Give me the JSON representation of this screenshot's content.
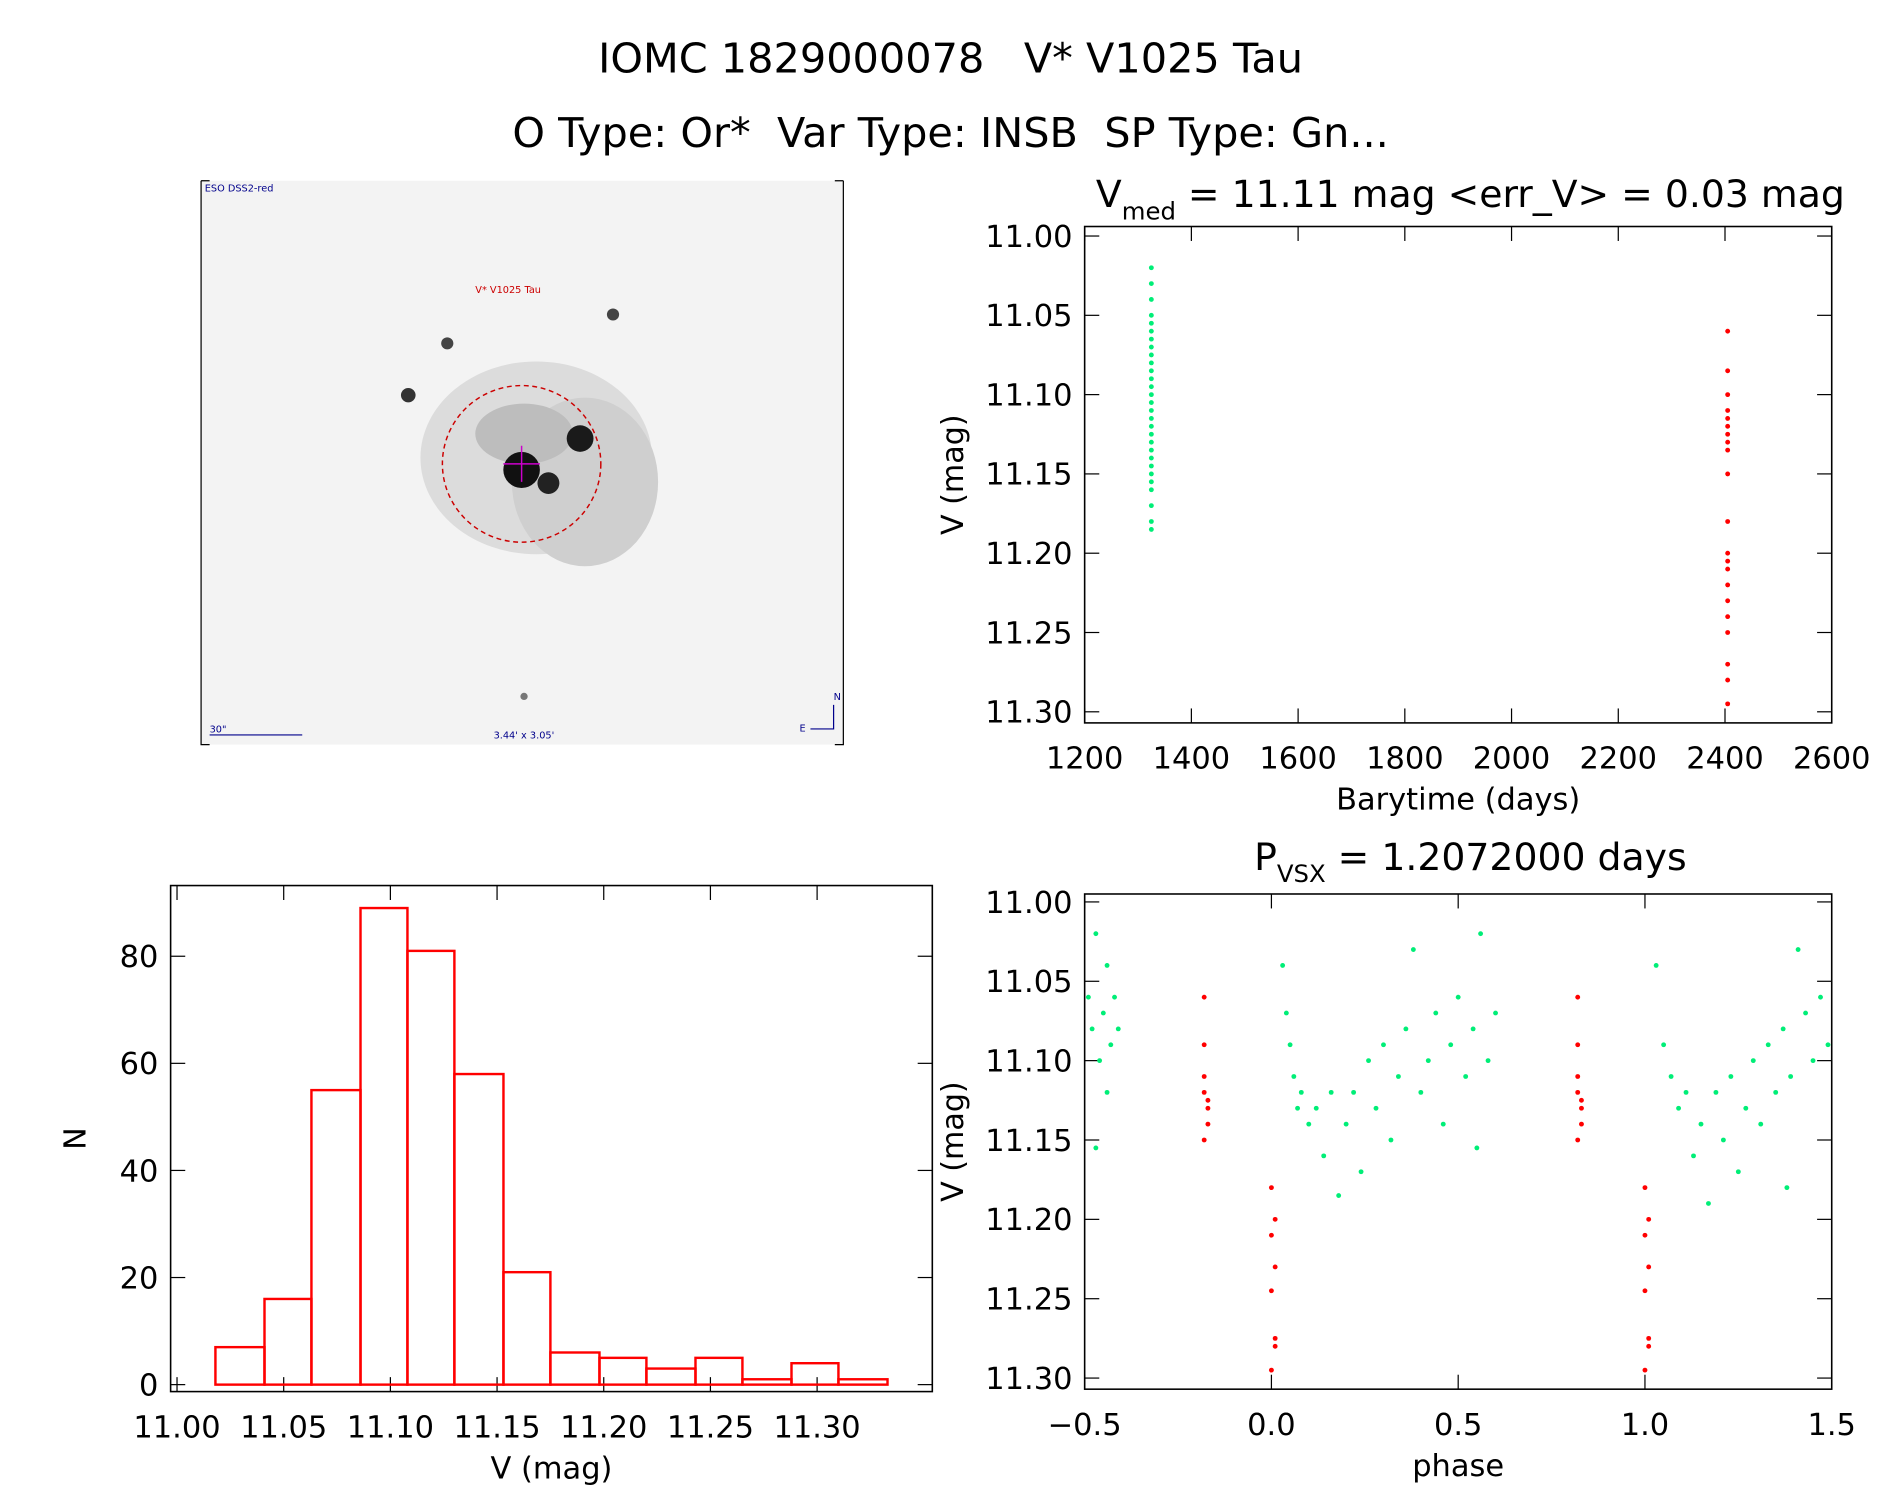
{
  "header": {
    "title": "IOMC 1829000078   V* V1025 Tau",
    "subtitle": "O Type: Or*  Var Type: INSB  SP Type: Gn..."
  },
  "image": {
    "survey": "ESO DSS2-red",
    "target": "V* V1025 Tau",
    "scale": "30\"",
    "size": "3.44' x 3.05'",
    "north": "N",
    "east": "E"
  },
  "chart_data": [
    {
      "type": "scatter",
      "title": {
        "symbol": "V",
        "subscript": "med",
        "text": " = 11.11 mag <err_V> = 0.03 mag"
      },
      "x_label": "Barytime (days)",
      "y_label": "V (mag)",
      "xlim": [
        1200,
        2600
      ],
      "xticks": [
        1200,
        1400,
        1600,
        1800,
        2000,
        2200,
        2400,
        2600
      ],
      "ylim": [
        11.307,
        10.994
      ],
      "yticks": [
        {
          "value": 11.0,
          "label": "11.00"
        },
        {
          "value": 11.05,
          "label": "11.05"
        },
        {
          "value": 11.1,
          "label": "11.10"
        },
        {
          "value": 11.15,
          "label": "11.15"
        },
        {
          "value": 11.2,
          "label": "11.20"
        },
        {
          "value": 11.25,
          "label": "11.25"
        },
        {
          "value": 11.3,
          "label": "11.30"
        }
      ],
      "series": [
        {
          "color": "#00ee77",
          "x": [
            1325,
            1325,
            1325,
            1325,
            1325,
            1325,
            1325,
            1325,
            1325,
            1325,
            1325,
            1325,
            1325,
            1325,
            1325,
            1325,
            1325,
            1325,
            1325,
            1325,
            1325,
            1325,
            1325,
            1325,
            1325,
            1325,
            1325,
            1325,
            1325
          ],
          "values": [
            11.02,
            11.03,
            11.04,
            11.05,
            11.055,
            11.06,
            11.065,
            11.07,
            11.075,
            11.08,
            11.085,
            11.09,
            11.095,
            11.1,
            11.105,
            11.11,
            11.115,
            11.12,
            11.125,
            11.13,
            11.135,
            11.14,
            11.145,
            11.15,
            11.155,
            11.16,
            11.17,
            11.18,
            11.185
          ]
        },
        {
          "color": "#ff0000",
          "x": [
            2405,
            2405,
            2405,
            2405,
            2405,
            2405,
            2405,
            2405,
            2405,
            2405,
            2405,
            2405,
            2405,
            2405,
            2405,
            2405,
            2405,
            2405,
            2405,
            2405,
            2405
          ],
          "values": [
            11.06,
            11.085,
            11.1,
            11.11,
            11.115,
            11.12,
            11.125,
            11.13,
            11.135,
            11.15,
            11.18,
            11.2,
            11.205,
            11.21,
            11.22,
            11.23,
            11.24,
            11.25,
            11.27,
            11.28,
            11.295
          ]
        }
      ]
    },
    {
      "type": "histogram",
      "x_label": "V (mag)",
      "y_label": "N",
      "color": "#ff0000",
      "bins": [
        11.018,
        11.041,
        11.063,
        11.086,
        11.108,
        11.13,
        11.153,
        11.175,
        11.198,
        11.22,
        11.243,
        11.265,
        11.288,
        11.31,
        11.333
      ],
      "values": [
        7,
        16,
        55,
        89,
        81,
        58,
        21,
        6,
        5,
        3,
        5,
        1,
        4,
        1
      ],
      "xlim": [
        10.997,
        11.354
      ],
      "xticks": [
        {
          "value": 11.0,
          "label": "11.00"
        },
        {
          "value": 11.05,
          "label": "11.05"
        },
        {
          "value": 11.1,
          "label": "11.10"
        },
        {
          "value": 11.15,
          "label": "11.15"
        },
        {
          "value": 11.2,
          "label": "11.20"
        },
        {
          "value": 11.25,
          "label": "11.25"
        },
        {
          "value": 11.3,
          "label": "11.30"
        }
      ],
      "ylim": [
        -1.3,
        93.2
      ],
      "yticks": [
        0,
        20,
        40,
        60,
        80
      ]
    },
    {
      "type": "scatter",
      "title": {
        "symbol": "P",
        "subscript": "VSX",
        "text": " = 1.2072000 days"
      },
      "x_label": "phase",
      "y_label": "V (mag)",
      "xlim": [
        -0.5,
        1.5
      ],
      "xticks": [
        {
          "value": -0.5,
          "label": "−0.5"
        },
        {
          "value": 0,
          "label": "0.0"
        },
        {
          "value": 0.5,
          "label": "0.5"
        },
        {
          "value": 1,
          "label": "1.0"
        },
        {
          "value": 1.5,
          "label": "1.5"
        }
      ],
      "ylim": [
        11.307,
        10.995
      ],
      "yticks": [
        {
          "value": 11.0,
          "label": "11.00"
        },
        {
          "value": 11.05,
          "label": "11.05"
        },
        {
          "value": 11.1,
          "label": "11.10"
        },
        {
          "value": 11.15,
          "label": "11.15"
        },
        {
          "value": 11.2,
          "label": "11.20"
        },
        {
          "value": 11.25,
          "label": "11.25"
        },
        {
          "value": 11.3,
          "label": "11.30"
        }
      ],
      "series": [
        {
          "color": "#00ee77",
          "x": [
            -0.49,
            -0.48,
            -0.47,
            -0.46,
            -0.45,
            -0.44,
            -0.43,
            -0.42,
            -0.41,
            -0.47,
            -0.44,
            0.03,
            0.04,
            0.05,
            0.06,
            0.07,
            0.08,
            0.1,
            0.12,
            0.14,
            0.16,
            0.18,
            0.2,
            0.22,
            0.24,
            0.26,
            0.28,
            0.3,
            0.32,
            0.34,
            0.36,
            0.38,
            0.4,
            0.42,
            0.44,
            0.46,
            0.48,
            0.5,
            0.52,
            0.54,
            0.56,
            0.58,
            0.6,
            0.55,
            1.03,
            1.05,
            1.07,
            1.09,
            1.11,
            1.13,
            1.15,
            1.17,
            1.19,
            1.21,
            1.23,
            1.25,
            1.27,
            1.29,
            1.31,
            1.33,
            1.35,
            1.37,
            1.39,
            1.41,
            1.43,
            1.45,
            1.47,
            1.49,
            1.38
          ],
          "values": [
            11.06,
            11.08,
            11.02,
            11.1,
            11.07,
            11.04,
            11.09,
            11.06,
            11.08,
            11.155,
            11.12,
            11.04,
            11.07,
            11.09,
            11.11,
            11.13,
            11.12,
            11.14,
            11.13,
            11.16,
            11.12,
            11.185,
            11.14,
            11.12,
            11.17,
            11.1,
            11.13,
            11.09,
            11.15,
            11.11,
            11.08,
            11.03,
            11.12,
            11.1,
            11.07,
            11.14,
            11.09,
            11.06,
            11.11,
            11.08,
            11.02,
            11.1,
            11.07,
            11.155,
            11.04,
            11.09,
            11.11,
            11.13,
            11.12,
            11.16,
            11.14,
            11.19,
            11.12,
            11.15,
            11.11,
            11.17,
            11.13,
            11.1,
            11.14,
            11.09,
            11.12,
            11.08,
            11.11,
            11.03,
            11.07,
            11.1,
            11.06,
            11.09,
            11.18
          ]
        },
        {
          "color": "#ff0000",
          "x": [
            -0.18,
            -0.18,
            -0.18,
            -0.18,
            -0.17,
            -0.17,
            -0.17,
            -0.18,
            0.0,
            0.01,
            0.0,
            0.01,
            0.0,
            0.01,
            0.01,
            0.0,
            0.82,
            0.82,
            0.82,
            0.82,
            0.83,
            0.83,
            0.83,
            0.82,
            1.0,
            1.01,
            1.0,
            1.01,
            1.0,
            1.01,
            1.01,
            1.0
          ],
          "values": [
            11.06,
            11.09,
            11.11,
            11.12,
            11.125,
            11.13,
            11.14,
            11.15,
            11.18,
            11.2,
            11.21,
            11.23,
            11.245,
            11.275,
            11.28,
            11.295,
            11.06,
            11.09,
            11.11,
            11.12,
            11.125,
            11.13,
            11.14,
            11.15,
            11.18,
            11.2,
            11.21,
            11.23,
            11.245,
            11.275,
            11.28,
            11.295
          ]
        }
      ]
    }
  ]
}
